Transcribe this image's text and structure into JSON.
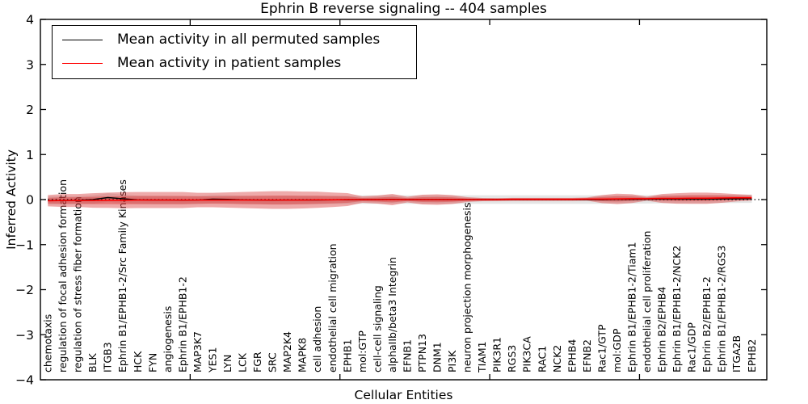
{
  "chart_data": {
    "type": "line",
    "title": "Ephrin B reverse signaling -- 404 samples",
    "xlabel": "Cellular Entities",
    "ylabel": "Inferred Activity",
    "ylim": [
      -4,
      4
    ],
    "yticks": [
      -4,
      -3,
      -2,
      -1,
      0,
      1,
      2,
      3,
      4
    ],
    "x_index_max": 48.5,
    "xtick_index_positions": [
      10,
      20,
      30,
      40
    ],
    "grid": false,
    "zero_line": {
      "y": 0,
      "style": "dotted",
      "color": "#000000"
    },
    "legend": {
      "position": "upper left",
      "entries": [
        {
          "label": "Mean activity in all permuted samples",
          "color": "#000000"
        },
        {
          "label": "Mean activity in patient samples",
          "color": "#ff0000"
        }
      ]
    },
    "categories": [
      "chemotaxis",
      "regulation of focal adhesion formation",
      "regulation of stress fiber formation",
      "BLK",
      "ITGB3",
      "Ephrin B1/EPHB1-2/Src Family Kinases",
      "HCK",
      "FYN",
      "angiogenesis",
      "Ephrin B1/EPHB1-2",
      "MAP3K7",
      "YES1",
      "LYN",
      "LCK",
      "FGR",
      "SRC",
      "MAP2K4",
      "MAPK8",
      "cell adhesion",
      "endothelial cell migration",
      "EPHB1",
      "mol:GTP",
      "cell-cell signaling",
      "alphaIIb/beta3 Integrin",
      "EFNB1",
      "PTPN13",
      "DNM1",
      "PI3K",
      "neuron projection morphogenesis",
      "TIAM1",
      "PIK3R1",
      "RGS3",
      "PIK3CA",
      "RAC1",
      "NCK2",
      "EPHB4",
      "EFNB2",
      "Rac1/GTP",
      "mol:GDP",
      "Ephrin B1/EPHB1-2/Tiam1",
      "endothelial cell proliferation",
      "Ephrin B2/EPHB4",
      "Ephrin B1/EPHB1-2/NCK2",
      "Rac1/GDP",
      "Ephrin B2/EPHB1-2",
      "Ephrin B1/EPHB1-2/RGS3",
      "ITGA2B",
      "EPHB2"
    ],
    "series": [
      {
        "name": "Mean activity in all permuted samples",
        "color": "#000000",
        "values": [
          -0.02,
          -0.02,
          -0.015,
          0.0,
          0.045,
          0.02,
          -0.005,
          -0.01,
          -0.01,
          -0.015,
          -0.01,
          0.01,
          0.005,
          -0.005,
          -0.01,
          -0.015,
          -0.01,
          -0.01,
          -0.01,
          -0.005,
          -0.005,
          0.0,
          0.0,
          0.005,
          0.0,
          0.0,
          0.0,
          0.0,
          0.0,
          0.0,
          0.0,
          0.0,
          0.0,
          0.0,
          0.0,
          0.0,
          0.0,
          0.0,
          0.005,
          0.005,
          0.005,
          0.01,
          0.01,
          0.01,
          0.01,
          0.015,
          0.015,
          0.02
        ]
      },
      {
        "name": "Mean activity in patient samples",
        "color": "#ff0000",
        "values": [
          -0.025,
          -0.02,
          -0.02,
          -0.02,
          -0.015,
          -0.015,
          -0.01,
          -0.01,
          -0.01,
          -0.01,
          -0.01,
          -0.01,
          -0.01,
          -0.01,
          -0.01,
          -0.01,
          -0.01,
          -0.01,
          -0.005,
          -0.005,
          0.0,
          0.0,
          0.0,
          0.0,
          0.0,
          0.0,
          0.0,
          0.0,
          0.0,
          0.0,
          0.0,
          0.005,
          0.005,
          0.005,
          0.005,
          0.005,
          0.01,
          0.01,
          0.015,
          0.02,
          0.02,
          0.025,
          0.025,
          0.03,
          0.03,
          0.035,
          0.04,
          0.04
        ]
      }
    ],
    "bands": [
      {
        "name": "permuted-sample-spread",
        "center_series": 0,
        "color": "#000000",
        "opacity": 0.1,
        "halfwidths": [
          0.093,
          0.093,
          0.093,
          0.093,
          0.093,
          0.093,
          0.093,
          0.093,
          0.093,
          0.093,
          0.093,
          0.093,
          0.093,
          0.093,
          0.093,
          0.093,
          0.093,
          0.093,
          0.093,
          0.093,
          0.093,
          0.093,
          0.093,
          0.093,
          0.093,
          0.093,
          0.093,
          0.093,
          0.093,
          0.093,
          0.093,
          0.093,
          0.093,
          0.093,
          0.093,
          0.093,
          0.093,
          0.093,
          0.093,
          0.093,
          0.093,
          0.093,
          0.093,
          0.093,
          0.093,
          0.093,
          0.093,
          0.093
        ]
      },
      {
        "name": "patient-sample-spread-outer",
        "center_series": 1,
        "color": "#d63434",
        "opacity": 0.42,
        "halfwidths": [
          0.125,
          0.143,
          0.143,
          0.161,
          0.17,
          0.179,
          0.179,
          0.179,
          0.179,
          0.179,
          0.161,
          0.161,
          0.17,
          0.179,
          0.188,
          0.197,
          0.197,
          0.188,
          0.179,
          0.161,
          0.143,
          0.072,
          0.089,
          0.125,
          0.063,
          0.107,
          0.116,
          0.098,
          0.054,
          0.036,
          0.032,
          0.032,
          0.032,
          0.032,
          0.032,
          0.032,
          0.036,
          0.089,
          0.116,
          0.098,
          0.045,
          0.098,
          0.116,
          0.125,
          0.125,
          0.107,
          0.08,
          0.063
        ]
      },
      {
        "name": "patient-sample-spread-inner",
        "center_series": 1,
        "color": "#d63434",
        "opacity": 0.42,
        "halfwidths": [
          0.063,
          0.072,
          0.072,
          0.081,
          0.085,
          0.09,
          0.09,
          0.09,
          0.09,
          0.09,
          0.081,
          0.081,
          0.085,
          0.09,
          0.094,
          0.099,
          0.099,
          0.094,
          0.09,
          0.081,
          0.072,
          0.036,
          0.045,
          0.063,
          0.032,
          0.054,
          0.058,
          0.049,
          0.027,
          0.025,
          0.025,
          0.025,
          0.025,
          0.025,
          0.025,
          0.025,
          0.025,
          0.045,
          0.058,
          0.049,
          0.025,
          0.049,
          0.058,
          0.063,
          0.063,
          0.054,
          0.04,
          0.032
        ]
      }
    ]
  }
}
